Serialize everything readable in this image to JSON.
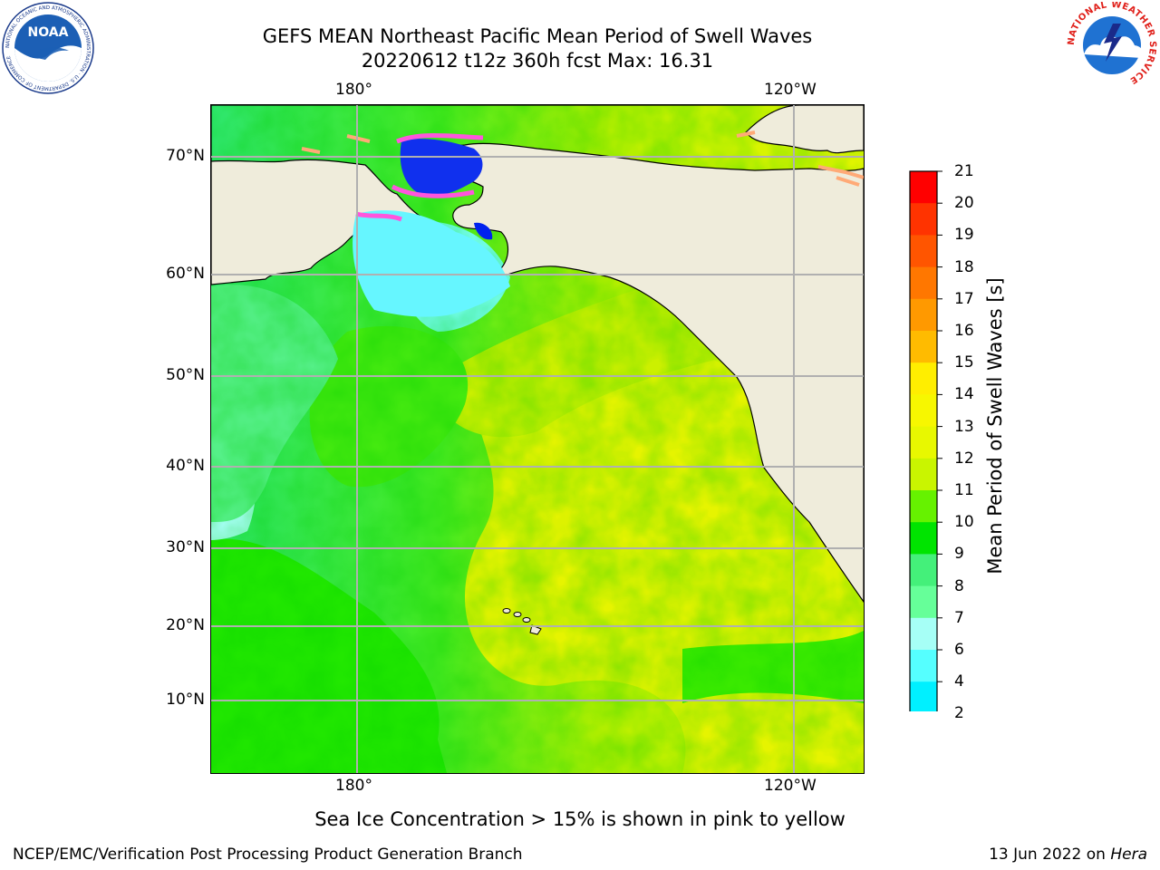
{
  "header": {
    "title_line1": "GEFS MEAN Northeast Pacific Mean Period of Swell Waves",
    "title_line2": "20220612 t12z 360h fcst   Max: 16.31"
  },
  "logos": {
    "noaa": {
      "text": "NOAA",
      "ring_text": "NATIONAL OCEANIC AND ATMOSPHERIC ADMINISTRATION · U.S. DEPARTMENT OF COMMERCE"
    },
    "nws": {
      "ring_text": "NATIONAL WEATHER SERVICE"
    }
  },
  "map": {
    "lon_labels_top": [
      "180°",
      "120°W"
    ],
    "lon_labels_bottom": [
      "180°",
      "120°W"
    ],
    "lat_labels": [
      "70°N",
      "60°N",
      "50°N",
      "40°N",
      "30°N",
      "20°N",
      "10°N"
    ],
    "colors": {
      "land": "#efecdb",
      "grid": "#b0b0b0",
      "ice": [
        "#ff55dd",
        "#ff99aa",
        "#ffbb66"
      ]
    }
  },
  "colorbar": {
    "label": "Mean Period of Swell Waves [s]",
    "ticks": [
      "21",
      "20",
      "19",
      "18",
      "17",
      "16",
      "15",
      "14",
      "13",
      "12",
      "11",
      "10",
      "9",
      "8",
      "7",
      "6",
      "4",
      "2"
    ],
    "colors_top_to_bottom": [
      "#ff0000",
      "#ff3300",
      "#ff5500",
      "#ff7700",
      "#ff9900",
      "#ffbb00",
      "#ffee00",
      "#f7f700",
      "#e8f800",
      "#c9f500",
      "#66f200",
      "#00e400",
      "#44f07a",
      "#66ff99",
      "#a6fff6",
      "#55ffff",
      "#00f0ff",
      "#00b7ff",
      "#0077ff"
    ],
    "extend_color": "#0000ee"
  },
  "footer": {
    "ice_note": "Sea Ice Concentration > 15% is shown in pink to yellow",
    "left": "NCEP/EMC/Verification Post Processing Product Generation Branch",
    "date": "13 Jun 2022 on",
    "machine": "Hera"
  }
}
